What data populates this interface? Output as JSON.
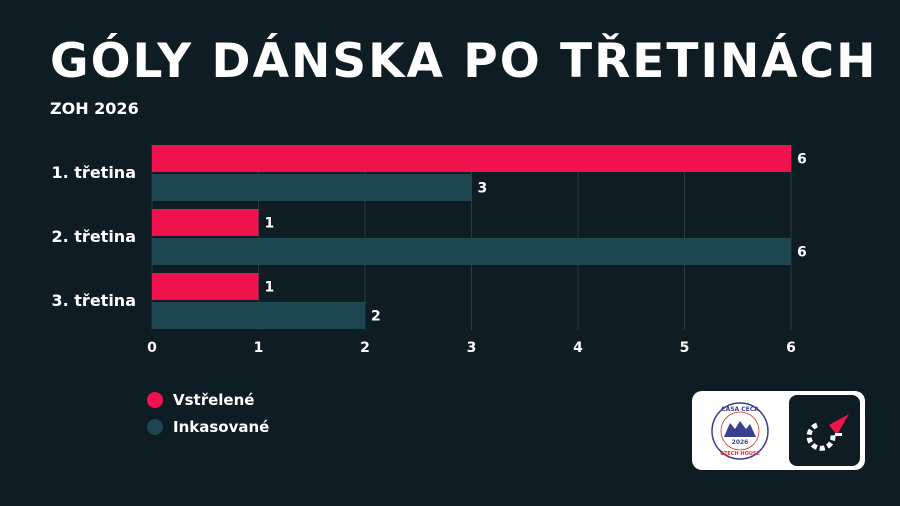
{
  "header": {
    "title": "GÓLY DÁNSKA PO TŘETINÁCH",
    "subtitle": "ZOH 2026"
  },
  "chart_data": {
    "type": "bar",
    "orientation": "horizontal",
    "categories": [
      "1. třetina",
      "2. třetina",
      "3. třetina"
    ],
    "series": [
      {
        "name": "Vstřelené",
        "color": "#f0124c",
        "values": [
          6,
          1,
          1
        ]
      },
      {
        "name": "Inkasované",
        "color": "#1d4651",
        "values": [
          3,
          6,
          2
        ]
      }
    ],
    "xlim": [
      0,
      6
    ],
    "xticks": [
      "0",
      "1",
      "2",
      "3",
      "4",
      "5",
      "6"
    ],
    "grid": true,
    "legend": "bottom-left",
    "data_labels": true
  },
  "logos": {
    "casa_ceca": [
      "CASA CECA",
      "2026",
      "CZECH HOUSE"
    ]
  }
}
